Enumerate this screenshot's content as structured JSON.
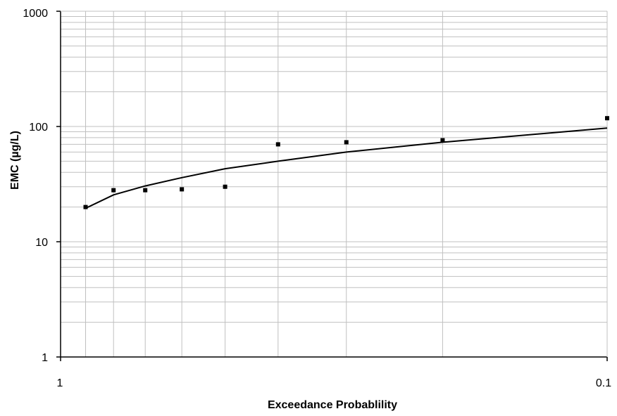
{
  "chart_data": {
    "type": "scatter",
    "xlabel": "Exceedance Probablility",
    "ylabel": "EMC  (µg/L)",
    "x_scale": "log-reversed",
    "y_scale": "log",
    "xlim": [
      1,
      0.1
    ],
    "ylim": [
      1,
      1000
    ],
    "x_tick_labels": [
      "1",
      "0.1"
    ],
    "y_tick_labels": [
      "1",
      "10",
      "100",
      "1000"
    ],
    "grid": true,
    "series": [
      {
        "type": "scatter",
        "points": [
          {
            "x": 0.9,
            "y": 20
          },
          {
            "x": 0.8,
            "y": 28
          },
          {
            "x": 0.7,
            "y": 28
          },
          {
            "x": 0.6,
            "y": 28.5
          },
          {
            "x": 0.5,
            "y": 30
          },
          {
            "x": 0.4,
            "y": 70
          },
          {
            "x": 0.3,
            "y": 73
          },
          {
            "x": 0.2,
            "y": 76
          },
          {
            "x": 0.1,
            "y": 118
          }
        ]
      },
      {
        "type": "line",
        "points": [
          {
            "x": 0.9,
            "y": 19.5
          },
          {
            "x": 0.8,
            "y": 25.5
          },
          {
            "x": 0.7,
            "y": 30.5
          },
          {
            "x": 0.6,
            "y": 36
          },
          {
            "x": 0.5,
            "y": 43
          },
          {
            "x": 0.4,
            "y": 50
          },
          {
            "x": 0.3,
            "y": 60
          },
          {
            "x": 0.2,
            "y": 73
          },
          {
            "x": 0.1,
            "y": 97
          }
        ]
      }
    ],
    "colors": {
      "grid": "#c0c0c0",
      "axis": "#000000",
      "marker": "#000000",
      "line": "#000000"
    }
  }
}
